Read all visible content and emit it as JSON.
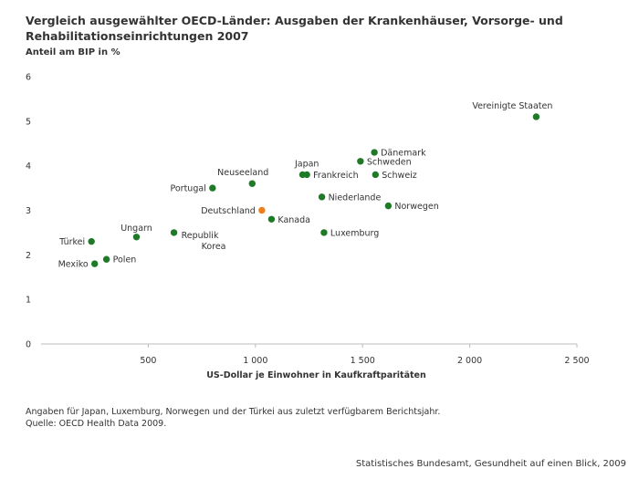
{
  "title": "Vergleich ausgewählter OECD-Länder: Ausgaben der Krankenhäuser, Vorsorge- und Rehabilitationseinrichtungen 2007",
  "subtitle": "Anteil am BIP in %",
  "note_line1": "Angaben für  Japan, Luxemburg, Norwegen und der Türkei aus zuletzt verfügbarem Berichtsjahr.",
  "note_line2": "Quelle: OECD Health Data 2009.",
  "publisher": "Statistisches Bundesamt, Gesundheit auf einen Blick, 2009",
  "colors": {
    "point": "#1e7a26",
    "highlight": "#f07f1a",
    "axis": "#bbbbbb"
  },
  "chart_data": {
    "type": "scatter",
    "title": "Vergleich ausgewählter OECD-Länder: Ausgaben der Krankenhäuser, Vorsorge- und Rehabilitationseinrichtungen 2007",
    "xlabel": "US-Dollar je Einwohner in Kaufkraftparitäten",
    "ylabel": "Anteil am BIP in %",
    "xlim": [
      0,
      2500
    ],
    "ylim": [
      0,
      6
    ],
    "xticks": [
      500,
      1000,
      1500,
      2000,
      2500
    ],
    "xtick_labels": [
      "500",
      "1 000",
      "1 500",
      "2 000",
      "2 500"
    ],
    "yticks": [
      0,
      1,
      2,
      3,
      4,
      5,
      6
    ],
    "ytick_labels": [
      "0",
      "1",
      "2",
      "3",
      "4",
      "5",
      "6"
    ],
    "grid": false,
    "points": [
      {
        "label": "Vereinigte Staaten",
        "x": 2310,
        "y": 5.1,
        "label_pos": "above-left"
      },
      {
        "label": "Dänemark",
        "x": 1555,
        "y": 4.3,
        "label_pos": "right"
      },
      {
        "label": "Schweden",
        "x": 1490,
        "y": 4.1,
        "label_pos": "right"
      },
      {
        "label": "Japan",
        "x": 1220,
        "y": 3.8,
        "label_pos": "above-left"
      },
      {
        "label": "Frankreich",
        "x": 1240,
        "y": 3.8,
        "label_pos": "right"
      },
      {
        "label": "Schweiz",
        "x": 1560,
        "y": 3.8,
        "label_pos": "right"
      },
      {
        "label": "Neuseeland",
        "x": 985,
        "y": 3.6,
        "label_pos": "above-left"
      },
      {
        "label": "Portugal",
        "x": 800,
        "y": 3.5,
        "label_pos": "left"
      },
      {
        "label": "Niederlande",
        "x": 1310,
        "y": 3.3,
        "label_pos": "right"
      },
      {
        "label": "Norwegen",
        "x": 1620,
        "y": 3.1,
        "label_pos": "right"
      },
      {
        "label": "Deutschland",
        "x": 1030,
        "y": 3.0,
        "label_pos": "left",
        "highlight": true
      },
      {
        "label": "Kanada",
        "x": 1075,
        "y": 2.8,
        "label_pos": "right"
      },
      {
        "label": "Ungarn",
        "x": 445,
        "y": 2.4,
        "label_pos": "above"
      },
      {
        "label": "Luxemburg",
        "x": 1320,
        "y": 2.5,
        "label_pos": "right"
      },
      {
        "label": "Republik Korea",
        "x": 620,
        "y": 2.5,
        "label_pos": "right-below"
      },
      {
        "label": "Türkei",
        "x": 235,
        "y": 2.3,
        "label_pos": "left"
      },
      {
        "label": "Polen",
        "x": 305,
        "y": 1.9,
        "label_pos": "right"
      },
      {
        "label": "Mexiko",
        "x": 250,
        "y": 1.8,
        "label_pos": "left"
      }
    ]
  }
}
